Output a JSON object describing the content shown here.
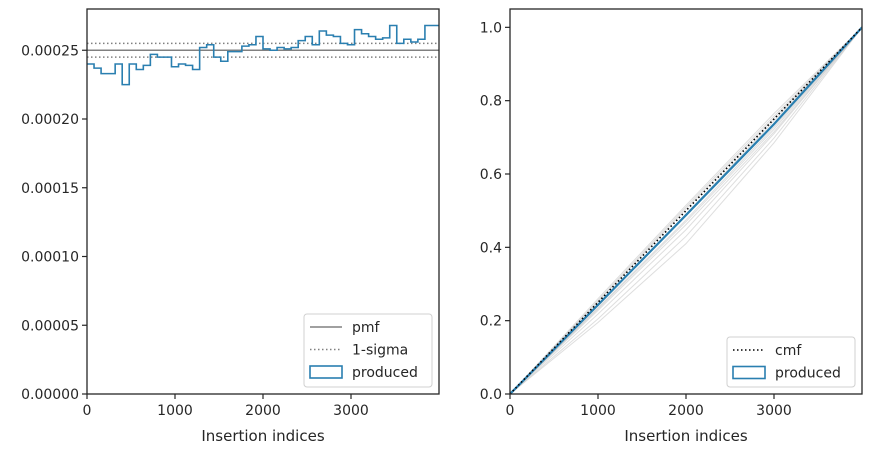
{
  "chart_data": [
    {
      "type": "line",
      "drawstyle": "steps",
      "xlabel": "Insertion indices",
      "ylabel": "",
      "xlim": [
        0,
        4000
      ],
      "ylim": [
        0,
        0.00028
      ],
      "xticks": [
        0,
        1000,
        2000,
        3000
      ],
      "xtick_labels": [
        "0",
        "1000",
        "2000",
        "3000"
      ],
      "yticks": [
        0,
        5e-05,
        0.0001,
        0.00015,
        0.0002,
        0.00025
      ],
      "ytick_labels": [
        "0.00000",
        "0.00005",
        "0.00010",
        "0.00015",
        "0.00020",
        "0.00025"
      ],
      "reference_lines": [
        {
          "name": "pmf",
          "y": 0.00025,
          "style": "solid",
          "color": "#808080"
        },
        {
          "name": "1-sigma",
          "y": 0.000255,
          "style": "dotted",
          "color": "#808080"
        },
        {
          "name": "1-sigma",
          "y": 0.000245,
          "style": "dotted",
          "color": "#808080"
        }
      ],
      "series": [
        {
          "name": "produced",
          "color": "#2a7fb0",
          "bin_width": 80,
          "values": [
            0.00024,
            0.000237,
            0.000233,
            0.000233,
            0.00024,
            0.000225,
            0.00024,
            0.000236,
            0.000239,
            0.000247,
            0.000245,
            0.000245,
            0.000238,
            0.00024,
            0.000239,
            0.000236,
            0.000252,
            0.000254,
            0.000245,
            0.000242,
            0.000249,
            0.000249,
            0.000253,
            0.000254,
            0.00026,
            0.000251,
            0.00025,
            0.000252,
            0.000251,
            0.000252,
            0.000257,
            0.00026,
            0.000254,
            0.000264,
            0.000261,
            0.00026,
            0.000255,
            0.000254,
            0.000265,
            0.000262,
            0.00026,
            0.000258,
            0.000259,
            0.000268,
            0.000255,
            0.000258,
            0.000256,
            0.000258,
            0.000268,
            0.000268
          ]
        }
      ],
      "legend": {
        "position": "lower-right",
        "entries": [
          {
            "label": "pmf",
            "kind": "line",
            "style": "solid",
            "color": "#808080"
          },
          {
            "label": "1-sigma",
            "kind": "line",
            "style": "dotted",
            "color": "#808080"
          },
          {
            "label": "produced",
            "kind": "patch",
            "color": "#2a7fb0"
          }
        ]
      }
    },
    {
      "type": "line",
      "xlabel": "Insertion indices",
      "ylabel": "",
      "xlim": [
        0,
        4000
      ],
      "ylim": [
        0,
        1.05
      ],
      "xticks": [
        0,
        1000,
        2000,
        3000
      ],
      "xtick_labels": [
        "0",
        "1000",
        "2000",
        "3000"
      ],
      "yticks": [
        0,
        0.2,
        0.4,
        0.6,
        0.8,
        1.0
      ],
      "ytick_labels": [
        "0.0",
        "0.2",
        "0.4",
        "0.6",
        "0.8",
        "1.0"
      ],
      "series": [
        {
          "name": "cmf",
          "style": "dotted",
          "color": "#000000",
          "x": [
            0,
            4000
          ],
          "y": [
            0,
            1.0
          ]
        },
        {
          "name": "produced",
          "color": "#2a7fb0",
          "x": [
            0,
            1000,
            2000,
            3000,
            4000
          ],
          "y": [
            0,
            0.243,
            0.488,
            0.736,
            1.0
          ]
        }
      ],
      "background_curves": {
        "color": "#c8c8c8",
        "curves": [
          [
            0,
            0.255,
            0.51,
            0.758,
            1.0
          ],
          [
            0,
            0.252,
            0.505,
            0.752,
            1.0
          ],
          [
            0,
            0.235,
            0.475,
            0.728,
            1.0
          ],
          [
            0,
            0.228,
            0.462,
            0.715,
            1.0
          ],
          [
            0,
            0.218,
            0.448,
            0.71,
            1.0
          ],
          [
            0,
            0.205,
            0.43,
            0.698,
            1.0
          ],
          [
            0,
            0.195,
            0.41,
            0.685,
            1.0
          ],
          [
            0,
            0.26,
            0.515,
            0.765,
            1.0
          ],
          [
            0,
            0.24,
            0.49,
            0.745,
            1.0
          ],
          [
            0,
            0.232,
            0.47,
            0.722,
            1.0
          ]
        ],
        "x": [
          0,
          1000,
          2000,
          3000,
          4000
        ]
      },
      "legend": {
        "position": "lower-right",
        "entries": [
          {
            "label": "cmf",
            "kind": "line",
            "style": "dotted",
            "color": "#000000"
          },
          {
            "label": "produced",
            "kind": "patch",
            "color": "#2a7fb0"
          }
        ]
      }
    }
  ]
}
